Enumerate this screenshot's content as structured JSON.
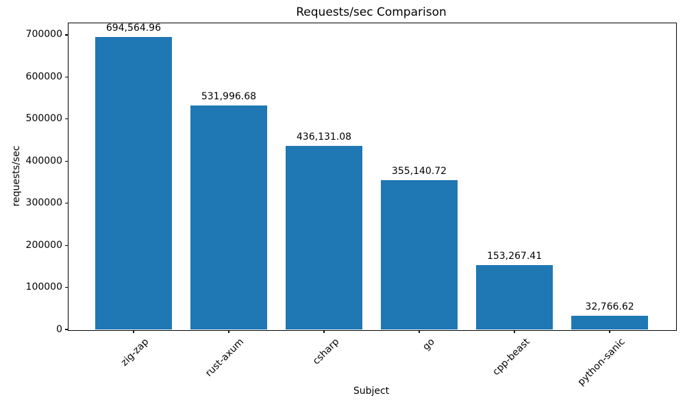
{
  "chart_data": {
    "type": "bar",
    "title": "Requests/sec Comparison",
    "xlabel": "Subject",
    "ylabel": "requests/sec",
    "categories": [
      "zig-zap",
      "rust-axum",
      "csharp",
      "go",
      "cpp-beast",
      "python-sanic"
    ],
    "values": [
      694564.96,
      531996.68,
      436131.08,
      355140.72,
      153267.41,
      32766.62
    ],
    "value_labels": [
      "694,564.96",
      "531,996.68",
      "436,131.08",
      "355,140.72",
      "153,267.41",
      "32,766.62"
    ],
    "yticks": [
      0,
      100000,
      200000,
      300000,
      400000,
      500000,
      600000,
      700000
    ],
    "ytick_labels": [
      "0",
      "100000",
      "200000",
      "300000",
      "400000",
      "500000",
      "600000",
      "700000"
    ],
    "ylim": [
      0,
      729293
    ],
    "bar_color": "#1f77b4",
    "grid": false,
    "legend_position": "none"
  }
}
